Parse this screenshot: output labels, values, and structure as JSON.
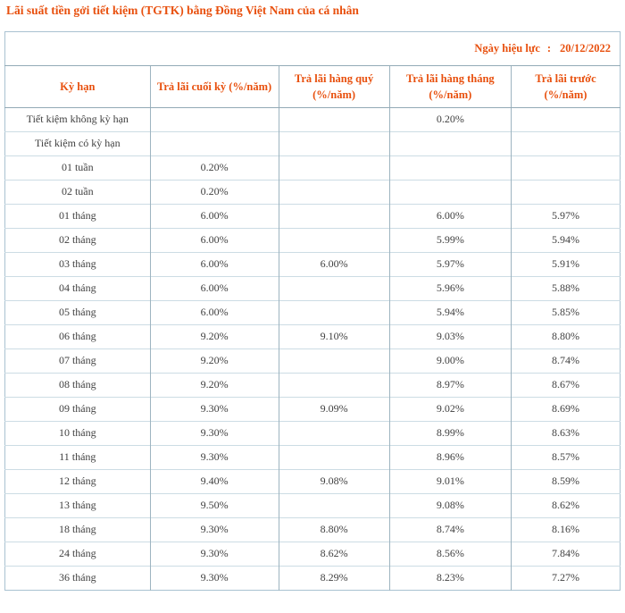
{
  "page": {
    "title": "Lãi suất tiền gởi tiết kiệm (TGTK) bằng Đồng Việt Nam của cá nhân"
  },
  "table": {
    "effective_date_label": "Ngày hiệu lực",
    "effective_date_colon": ":",
    "effective_date_value": "20/12/2022",
    "columns": [
      "Kỳ hạn",
      "Trả lãi cuối kỳ (%/năm)",
      "Trả lãi hàng quý (%/năm)",
      "Trả lãi hàng tháng (%/năm)",
      "Trả lãi trước (%/năm)"
    ],
    "rows": [
      [
        "Tiết kiệm không kỳ hạn",
        "",
        "",
        "0.20%",
        ""
      ],
      [
        "Tiết kiệm có kỳ hạn",
        "",
        "",
        "",
        ""
      ],
      [
        "01 tuần",
        "0.20%",
        "",
        "",
        ""
      ],
      [
        "02 tuần",
        "0.20%",
        "",
        "",
        ""
      ],
      [
        "01 tháng",
        "6.00%",
        "",
        "6.00%",
        "5.97%"
      ],
      [
        "02 tháng",
        "6.00%",
        "",
        "5.99%",
        "5.94%"
      ],
      [
        "03 tháng",
        "6.00%",
        "6.00%",
        "5.97%",
        "5.91%"
      ],
      [
        "04 tháng",
        "6.00%",
        "",
        "5.96%",
        "5.88%"
      ],
      [
        "05 tháng",
        "6.00%",
        "",
        "5.94%",
        "5.85%"
      ],
      [
        "06 tháng",
        "9.20%",
        "9.10%",
        "9.03%",
        "8.80%"
      ],
      [
        "07 tháng",
        "9.20%",
        "",
        "9.00%",
        "8.74%"
      ],
      [
        "08 tháng",
        "9.20%",
        "",
        "8.97%",
        "8.67%"
      ],
      [
        "09 tháng",
        "9.30%",
        "9.09%",
        "9.02%",
        "8.69%"
      ],
      [
        "10 tháng",
        "9.30%",
        "",
        "8.99%",
        "8.63%"
      ],
      [
        "11 tháng",
        "9.30%",
        "",
        "8.96%",
        "8.57%"
      ],
      [
        "12 tháng",
        "9.40%",
        "9.08%",
        "9.01%",
        "8.59%"
      ],
      [
        "13 tháng",
        "9.50%",
        "",
        "9.08%",
        "8.62%"
      ],
      [
        "18 tháng",
        "9.30%",
        "8.80%",
        "8.74%",
        "8.16%"
      ],
      [
        "24 tháng",
        "9.30%",
        "8.62%",
        "8.56%",
        "7.84%"
      ],
      [
        "36 tháng",
        "9.30%",
        "8.29%",
        "8.23%",
        "7.27%"
      ]
    ]
  },
  "colors": {
    "accent": "#e8500e",
    "text": "#3f3f3f",
    "border_outer": "#a9c2d1",
    "border_vertical": "#9db4c0",
    "border_heavy": "#93aab6",
    "border_row": "#ccdce4",
    "page_bg": "#ffffff"
  }
}
